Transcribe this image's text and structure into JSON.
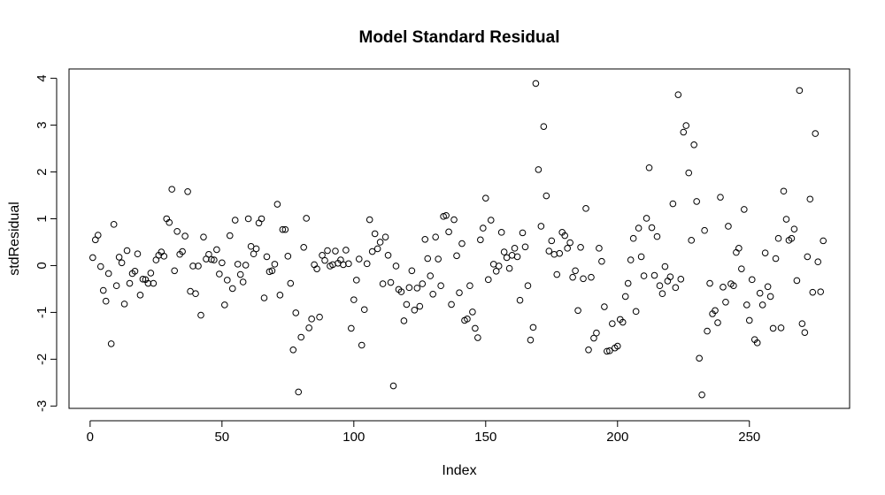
{
  "chart_data": {
    "type": "scatter",
    "title": "Model Standard Residual",
    "xlabel": "Index",
    "ylabel": "stdResidual",
    "xlim": [
      -8,
      288
    ],
    "ylim": [
      -3.05,
      4.2
    ],
    "x_ticks": [
      0,
      50,
      100,
      150,
      200,
      250
    ],
    "y_ticks": [
      -3,
      -2,
      -1,
      0,
      1,
      2,
      3,
      4
    ],
    "grid": false,
    "marker": "open-circle",
    "colors": {
      "point": "#000000",
      "axis": "#000000",
      "background": "#ffffff"
    },
    "y": [
      0.17,
      0.55,
      0.65,
      -0.02,
      -0.53,
      -0.76,
      -0.17,
      -1.67,
      0.88,
      -0.43,
      0.18,
      0.06,
      -0.82,
      0.32,
      -0.38,
      -0.17,
      -0.12,
      0.25,
      -0.63,
      -0.29,
      -0.3,
      -0.38,
      -0.16,
      -0.38,
      0.12,
      0.22,
      0.29,
      0.2,
      1.0,
      0.92,
      1.63,
      -0.11,
      0.73,
      0.24,
      0.3,
      0.63,
      1.58,
      -0.55,
      -0.01,
      -0.6,
      -0.01,
      -1.06,
      0.61,
      0.14,
      0.24,
      0.13,
      0.12,
      0.34,
      -0.18,
      0.06,
      -0.84,
      -0.31,
      0.64,
      -0.49,
      0.97,
      0.03,
      -0.19,
      -0.35,
      0.01,
      1.0,
      0.41,
      0.25,
      0.36,
      0.91,
      1.0,
      -0.69,
      0.19,
      -0.13,
      -0.11,
      0.03,
      1.31,
      -0.63,
      0.77,
      0.77,
      0.2,
      -0.38,
      -1.8,
      -1.01,
      -2.7,
      -1.53,
      0.39,
      1.01,
      -1.33,
      -1.14,
      0.02,
      -0.07,
      -1.1,
      0.22,
      0.11,
      0.32,
      -0.01,
      0.02,
      0.31,
      0.05,
      0.12,
      0.02,
      0.33,
      0.04,
      -1.34,
      -0.73,
      -0.31,
      0.14,
      -1.7,
      -0.94,
      0.04,
      0.98,
      0.3,
      0.68,
      0.36,
      0.5,
      -0.39,
      0.61,
      0.22,
      -0.36,
      -2.57,
      -0.01,
      -0.51,
      -0.56,
      -1.18,
      -0.83,
      -0.47,
      -0.11,
      -0.95,
      -0.48,
      -0.87,
      -0.39,
      0.56,
      0.15,
      -0.22,
      -0.61,
      0.61,
      0.14,
      -0.43,
      1.05,
      1.07,
      0.72,
      -0.83,
      0.98,
      0.21,
      -0.58,
      0.47,
      -1.17,
      -1.14,
      -0.43,
      -0.99,
      -1.34,
      -1.54,
      0.55,
      0.8,
      1.44,
      -0.3,
      0.97,
      0.03,
      -0.12,
      -0.01,
      0.71,
      0.29,
      0.17,
      -0.06,
      0.22,
      0.37,
      0.19,
      -0.74,
      0.7,
      0.4,
      -0.43,
      -1.59,
      -1.32,
      3.89,
      2.05,
      0.84,
      2.97,
      1.49,
      0.31,
      0.53,
      0.24,
      -0.19,
      0.26,
      0.71,
      0.64,
      0.37,
      0.49,
      -0.25,
      -0.11,
      -0.96,
      0.39,
      -0.28,
      1.22,
      -1.8,
      -0.25,
      -1.55,
      -1.44,
      0.37,
      0.09,
      -0.88,
      -1.83,
      -1.82,
      -1.24,
      -1.76,
      -1.72,
      -1.15,
      -1.21,
      -0.66,
      -0.38,
      0.12,
      0.58,
      -0.98,
      0.8,
      0.19,
      -0.22,
      1.01,
      2.09,
      0.81,
      -0.21,
      0.62,
      -0.43,
      -0.6,
      -0.02,
      -0.33,
      -0.24,
      1.32,
      -0.47,
      3.65,
      -0.29,
      2.85,
      2.99,
      1.98,
      0.54,
      2.58,
      1.37,
      -1.98,
      -2.76,
      0.75,
      -1.4,
      -0.38,
      -1.03,
      -0.96,
      -1.22,
      1.46,
      -0.46,
      -0.78,
      0.84,
      -0.39,
      -0.43,
      0.28,
      0.37,
      -0.07,
      1.2,
      -0.84,
      -1.17,
      -0.3,
      -1.58,
      -1.65,
      -0.59,
      -0.84,
      0.27,
      -0.45,
      -0.66,
      -1.34,
      0.15,
      0.58,
      -1.33,
      1.59,
      0.99,
      0.54,
      0.58,
      0.78,
      -0.32,
      3.74,
      -1.24,
      -1.43,
      0.19,
      1.42,
      -0.57,
      2.82,
      0.08,
      -0.56,
      0.53
    ]
  }
}
